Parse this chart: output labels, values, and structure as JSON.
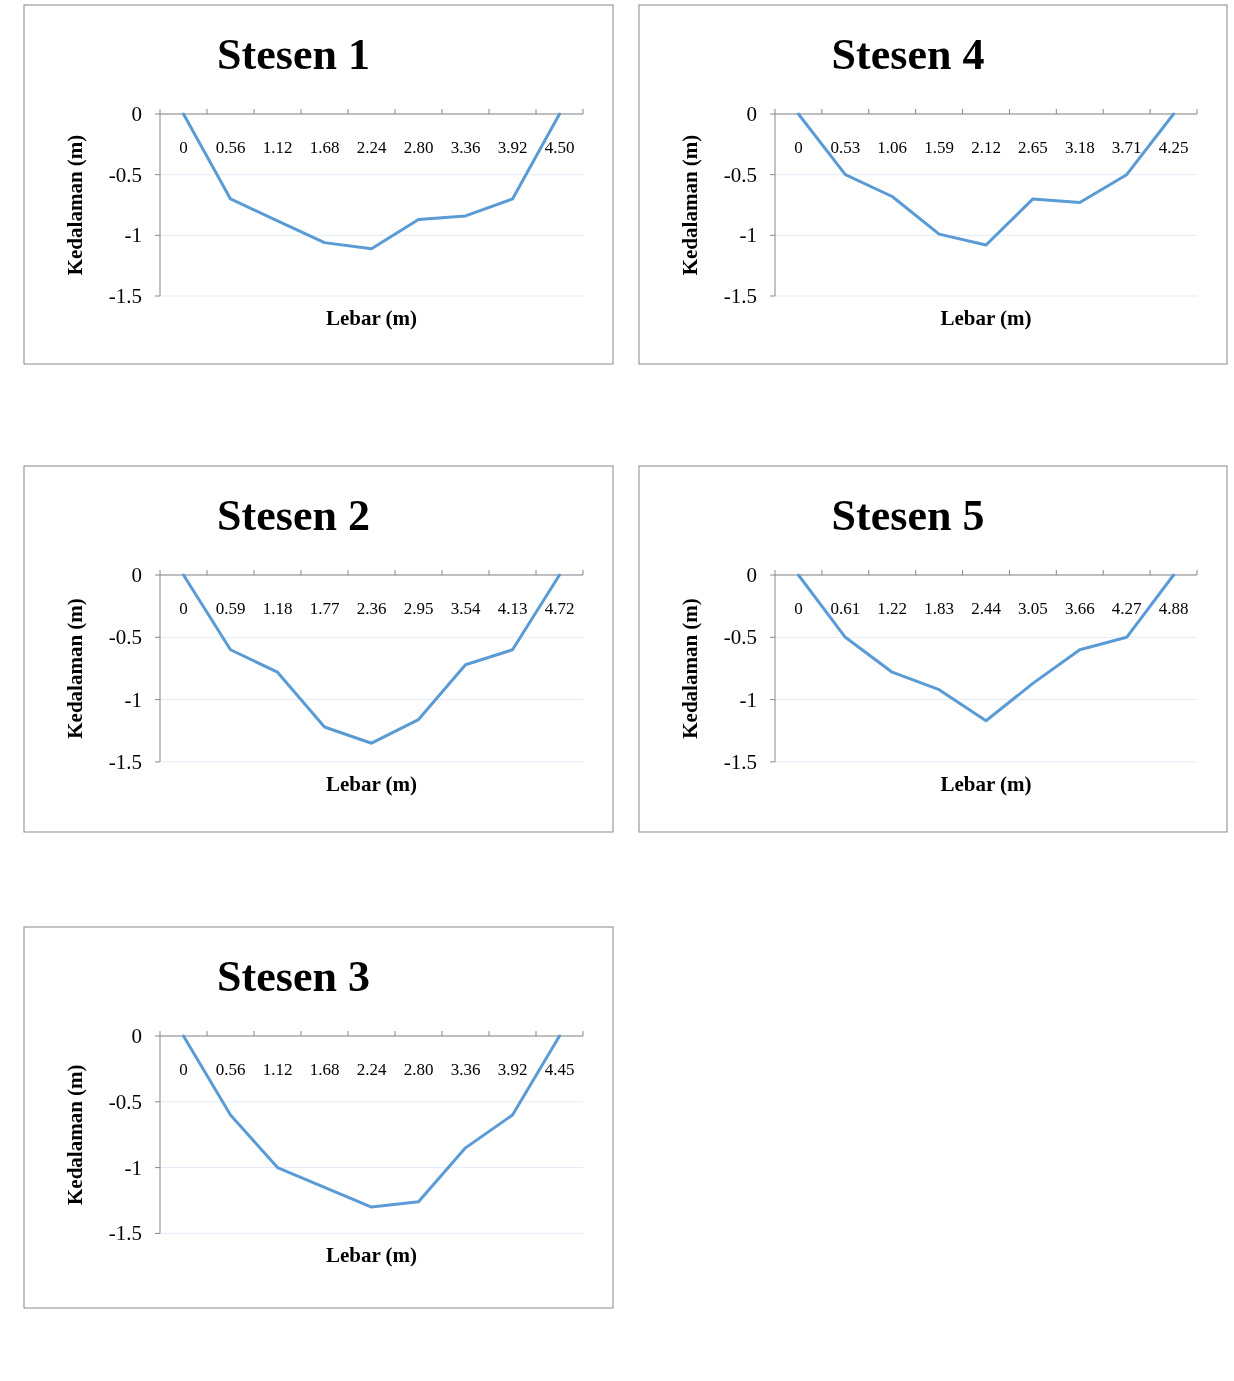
{
  "chart_data": [
    {
      "type": "line",
      "title": "Stesen 1",
      "xlabel": "Lebar (m)",
      "ylabel": "Kedalaman (m)",
      "categories": [
        "0",
        "0.56",
        "1.12",
        "1.68",
        "2.24",
        "2.80",
        "3.36",
        "3.92",
        "4.50"
      ],
      "series": [
        {
          "color": "#5b9bd5",
          "values": [
            0,
            -0.7,
            -0.88,
            -1.06,
            -1.11,
            -0.87,
            -0.84,
            -0.7,
            0
          ]
        }
      ],
      "ylim": [
        -1.5,
        0
      ],
      "yticks": [
        0,
        -0.5,
        -1,
        -1.5
      ],
      "grid": "y",
      "marker": "none"
    },
    {
      "type": "line",
      "title": "Stesen 4",
      "xlabel": "Lebar (m)",
      "ylabel": "Kedalaman (m)",
      "categories": [
        "0",
        "0.53",
        "1.06",
        "1.59",
        "2.12",
        "2.65",
        "3.18",
        "3.71",
        "4.25"
      ],
      "series": [
        {
          "color": "#5b9bd5",
          "values": [
            0,
            -0.5,
            -0.68,
            -0.99,
            -1.08,
            -0.7,
            -0.73,
            -0.5,
            0
          ]
        }
      ],
      "ylim": [
        -1.5,
        0
      ],
      "yticks": [
        0,
        -0.5,
        -1,
        -1.5
      ],
      "grid": "y",
      "marker": "none"
    },
    {
      "type": "line",
      "title": "Stesen 2",
      "xlabel": "Lebar (m)",
      "ylabel": "Kedalaman (m)",
      "categories": [
        "0",
        "0.59",
        "1.18",
        "1.77",
        "2.36",
        "2.95",
        "3.54",
        "4.13",
        "4.72"
      ],
      "series": [
        {
          "color": "#5b9bd5",
          "values": [
            0,
            -0.6,
            -0.78,
            -1.22,
            -1.35,
            -1.16,
            -0.72,
            -0.6,
            0
          ]
        }
      ],
      "ylim": [
        -1.5,
        0
      ],
      "yticks": [
        0,
        -0.5,
        -1,
        -1.5
      ],
      "grid": "y",
      "marker": "none"
    },
    {
      "type": "line",
      "title": "Stesen 5",
      "xlabel": "Lebar (m)",
      "ylabel": "Kedalaman (m)",
      "categories": [
        "0",
        "0.61",
        "1.22",
        "1.83",
        "2.44",
        "3.05",
        "3.66",
        "4.27",
        "4.88"
      ],
      "series": [
        {
          "color": "#5b9bd5",
          "values": [
            0,
            -0.5,
            -0.78,
            -0.92,
            -1.17,
            -0.87,
            -0.6,
            -0.5,
            0
          ]
        }
      ],
      "ylim": [
        -1.5,
        0
      ],
      "yticks": [
        0,
        -0.5,
        -1,
        -1.5
      ],
      "grid": "y",
      "marker": "none"
    },
    {
      "type": "line",
      "title": "Stesen 3",
      "xlabel": "Lebar (m)",
      "ylabel": "Kedalaman (m)",
      "categories": [
        "0",
        "0.56",
        "1.12",
        "1.68",
        "2.24",
        "2.80",
        "3.36",
        "3.92",
        "4.45"
      ],
      "series": [
        {
          "color": "#5b9bd5",
          "values": [
            0,
            -0.6,
            -1.0,
            -1.15,
            -1.3,
            -1.26,
            -0.85,
            -0.6,
            0
          ]
        }
      ],
      "ylim": [
        -1.5,
        0
      ],
      "yticks": [
        0,
        -0.5,
        -1,
        -1.5
      ],
      "grid": "y",
      "marker": "none"
    }
  ]
}
